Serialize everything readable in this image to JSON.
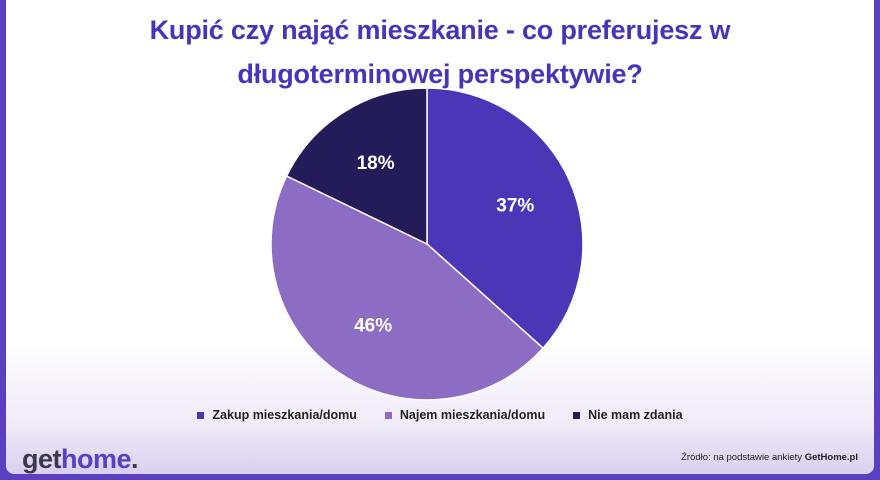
{
  "header": {
    "title_line1": "Kupić czy nająć mieszkanie - co preferujesz w",
    "title_line2": "długoterminowej perspektywie?"
  },
  "chart_data": {
    "type": "pie",
    "title": "Kupić czy nająć mieszkanie - co preferujesz w długoterminowej perspektywie?",
    "slices": [
      {
        "name": "Zakup mieszkania/domu",
        "value": 37,
        "label": "37%",
        "color": "#4b36b8"
      },
      {
        "name": "Najem mieszkania/domu",
        "value": 46,
        "label": "46%",
        "color": "#8d6cc4"
      },
      {
        "name": "Nie mam zdania",
        "value": 18,
        "label": "18%",
        "color": "#231c58"
      }
    ],
    "start": "12 o'clock",
    "direction": "clockwise",
    "legend": "bottom"
  },
  "footer": {
    "logo_part1": "get",
    "logo_part2": "home",
    "logo_part3": ".",
    "source_prefix": "Źródło: na podstawie ankiety ",
    "source_brand": "GetHome.pl"
  }
}
